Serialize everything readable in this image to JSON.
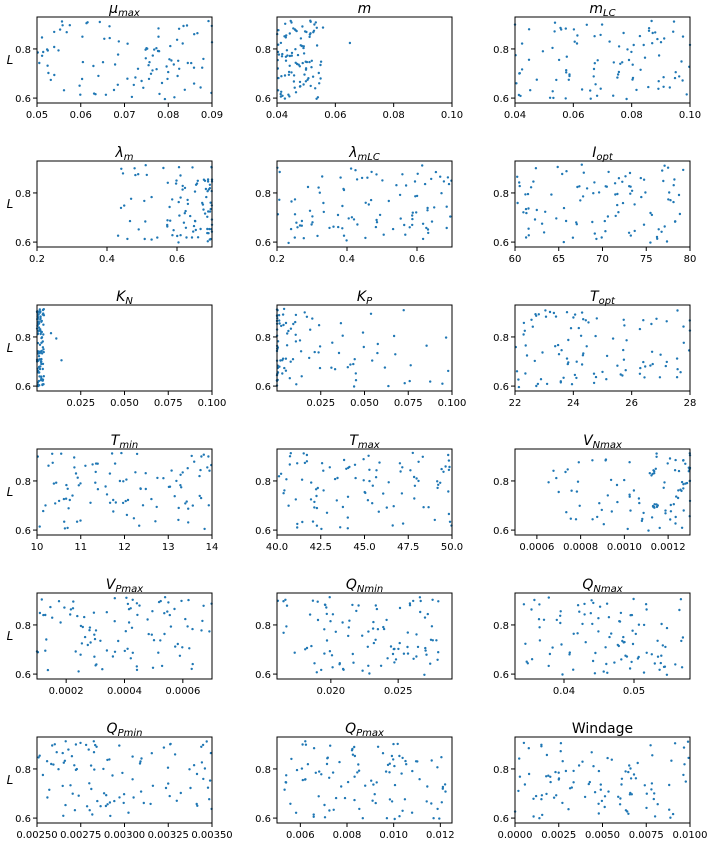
{
  "colors": {
    "points": "#1f77b4",
    "axes": "#000000",
    "background": "#ffffff"
  },
  "chart_data": [
    {
      "type": "scatter",
      "title": "μmax",
      "title_main": "μ",
      "title_sub": "max",
      "ylabel": "L",
      "xlim": [
        0.05,
        0.09
      ],
      "ylim": [
        0.58,
        0.93
      ],
      "xticks": [
        0.05,
        0.06,
        0.07,
        0.08,
        0.09
      ],
      "xtick_labels": [
        "0.05",
        "0.06",
        "0.07",
        "0.08",
        "0.09"
      ],
      "yticks": [
        0.6,
        0.8
      ],
      "ytick_labels": [
        "0.6",
        "0.8"
      ],
      "distribution": {
        "type": "uniform",
        "x_range": [
          0.05,
          0.09
        ],
        "n": 100
      }
    },
    {
      "type": "scatter",
      "title": "m",
      "title_main": "m",
      "title_sub": "",
      "ylabel": "",
      "xlim": [
        0.04,
        0.1
      ],
      "ylim": [
        0.58,
        0.93
      ],
      "xticks": [
        0.04,
        0.06,
        0.08,
        0.1
      ],
      "xtick_labels": [
        "0.04",
        "0.06",
        "0.08",
        "0.10"
      ],
      "yticks": [
        0.6,
        0.8
      ],
      "ytick_labels": [
        "0.6",
        "0.8"
      ],
      "distribution": {
        "type": "clustered",
        "x_range": [
          0.04,
          0.056
        ],
        "outliers_x": [
          0.065
        ],
        "n": 100
      }
    },
    {
      "type": "scatter",
      "title": "mLC",
      "title_main": "m",
      "title_sub": "LC",
      "ylabel": "",
      "xlim": [
        0.04,
        0.1
      ],
      "ylim": [
        0.58,
        0.93
      ],
      "xticks": [
        0.04,
        0.06,
        0.08,
        0.1
      ],
      "xtick_labels": [
        "0.04",
        "0.06",
        "0.08",
        "0.10"
      ],
      "yticks": [
        0.6,
        0.8
      ],
      "ytick_labels": [
        "0.6",
        "0.8"
      ],
      "distribution": {
        "type": "uniform",
        "x_range": [
          0.04,
          0.1
        ],
        "n": 100
      }
    },
    {
      "type": "scatter",
      "title": "λm",
      "title_main": "λ",
      "title_sub": "m",
      "ylabel": "L",
      "xlim": [
        0.2,
        0.7
      ],
      "ylim": [
        0.58,
        0.93
      ],
      "xticks": [
        0.2,
        0.4,
        0.6
      ],
      "xtick_labels": [
        "0.2",
        "0.4",
        "0.6"
      ],
      "yticks": [
        0.6,
        0.8
      ],
      "ytick_labels": [
        "0.6",
        "0.8"
      ],
      "distribution": {
        "type": "skewed_right",
        "x_range": [
          0.42,
          0.7
        ],
        "n": 100
      }
    },
    {
      "type": "scatter",
      "title": "λmLC",
      "title_main": "λ",
      "title_sub": "mLC",
      "ylabel": "",
      "xlim": [
        0.2,
        0.7
      ],
      "ylim": [
        0.58,
        0.93
      ],
      "xticks": [
        0.2,
        0.4,
        0.6
      ],
      "xtick_labels": [
        "0.2",
        "0.4",
        "0.6"
      ],
      "yticks": [
        0.6,
        0.8
      ],
      "ytick_labels": [
        "0.6",
        "0.8"
      ],
      "distribution": {
        "type": "uniform",
        "x_range": [
          0.2,
          0.7
        ],
        "n": 100
      }
    },
    {
      "type": "scatter",
      "title": "Iopt",
      "title_main": "I",
      "title_sub": "opt",
      "ylabel": "",
      "xlim": [
        60,
        80
      ],
      "ylim": [
        0.58,
        0.93
      ],
      "xticks": [
        60,
        65,
        70,
        75,
        80
      ],
      "xtick_labels": [
        "60",
        "65",
        "70",
        "75",
        "80"
      ],
      "yticks": [
        0.6,
        0.8
      ],
      "ytick_labels": [
        "0.6",
        "0.8"
      ],
      "distribution": {
        "type": "uniform",
        "x_range": [
          60,
          80
        ],
        "n": 100
      }
    },
    {
      "type": "scatter",
      "title": "KN",
      "title_main": "K",
      "title_sub": "N",
      "ylabel": "L",
      "xlim": [
        0.0,
        0.1
      ],
      "ylim": [
        0.58,
        0.93
      ],
      "xticks": [
        0.025,
        0.05,
        0.075,
        0.1
      ],
      "xtick_labels": [
        "0.025",
        "0.050",
        "0.075",
        "0.100"
      ],
      "yticks": [
        0.6,
        0.8
      ],
      "ytick_labels": [
        "0.6",
        "0.8"
      ],
      "distribution": {
        "type": "clustered",
        "x_range": [
          0.0,
          0.004
        ],
        "outliers_x": [
          0.008,
          0.011,
          0.014
        ],
        "n": 100
      }
    },
    {
      "type": "scatter",
      "title": "KP",
      "title_main": "K",
      "title_sub": "P",
      "ylabel": "",
      "xlim": [
        0.0,
        0.1
      ],
      "ylim": [
        0.58,
        0.93
      ],
      "xticks": [
        0.025,
        0.05,
        0.075,
        0.1
      ],
      "xtick_labels": [
        "0.025",
        "0.050",
        "0.075",
        "0.100"
      ],
      "yticks": [
        0.6,
        0.8
      ],
      "ytick_labels": [
        "0.6",
        "0.8"
      ],
      "distribution": {
        "type": "decaying",
        "x_range": [
          0.0,
          0.1
        ],
        "n": 100
      }
    },
    {
      "type": "scatter",
      "title": "Topt",
      "title_main": "T",
      "title_sub": "opt",
      "ylabel": "",
      "xlim": [
        22,
        28
      ],
      "ylim": [
        0.58,
        0.93
      ],
      "xticks": [
        22,
        24,
        26,
        28
      ],
      "xtick_labels": [
        "22",
        "24",
        "26",
        "28"
      ],
      "yticks": [
        0.6,
        0.8
      ],
      "ytick_labels": [
        "0.6",
        "0.8"
      ],
      "distribution": {
        "type": "uniform",
        "x_range": [
          22,
          28
        ],
        "n": 100
      }
    },
    {
      "type": "scatter",
      "title": "Tmin",
      "title_main": "T",
      "title_sub": "min",
      "ylabel": "L",
      "xlim": [
        10,
        14
      ],
      "ylim": [
        0.58,
        0.93
      ],
      "xticks": [
        10,
        11,
        12,
        13,
        14
      ],
      "xtick_labels": [
        "10",
        "11",
        "12",
        "13",
        "14"
      ],
      "yticks": [
        0.6,
        0.8
      ],
      "ytick_labels": [
        "0.6",
        "0.8"
      ],
      "distribution": {
        "type": "uniform",
        "x_range": [
          10,
          14
        ],
        "n": 100
      }
    },
    {
      "type": "scatter",
      "title": "Tmax",
      "title_main": "T",
      "title_sub": "max",
      "ylabel": "",
      "xlim": [
        40,
        50
      ],
      "ylim": [
        0.58,
        0.93
      ],
      "xticks": [
        40,
        42.5,
        45,
        47.5,
        50
      ],
      "xtick_labels": [
        "40.0",
        "42.5",
        "45.0",
        "47.5",
        "50.0"
      ],
      "yticks": [
        0.6,
        0.8
      ],
      "ytick_labels": [
        "0.6",
        "0.8"
      ],
      "distribution": {
        "type": "uniform",
        "x_range": [
          40,
          50
        ],
        "n": 100
      }
    },
    {
      "type": "scatter",
      "title": "VNmax",
      "title_main": "V",
      "title_sub": "Nmax",
      "ylabel": "",
      "xlim": [
        0.0005,
        0.0013
      ],
      "ylim": [
        0.58,
        0.93
      ],
      "xticks": [
        0.0006,
        0.0008,
        0.001,
        0.0012
      ],
      "xtick_labels": [
        "0.0006",
        "0.0008",
        "0.0010",
        "0.0012"
      ],
      "yticks": [
        0.6,
        0.8
      ],
      "ytick_labels": [
        "0.6",
        "0.8"
      ],
      "distribution": {
        "type": "skewed_right",
        "x_range": [
          0.00065,
          0.0013
        ],
        "n": 100
      }
    },
    {
      "type": "scatter",
      "title": "VPmax",
      "title_main": "V",
      "title_sub": "Pmax",
      "ylabel": "L",
      "xlim": [
        0.0001,
        0.0007
      ],
      "ylim": [
        0.58,
        0.93
      ],
      "xticks": [
        0.0002,
        0.0004,
        0.0006
      ],
      "xtick_labels": [
        "0.0002",
        "0.0004",
        "0.0006"
      ],
      "yticks": [
        0.6,
        0.8
      ],
      "ytick_labels": [
        "0.6",
        "0.8"
      ],
      "distribution": {
        "type": "uniform",
        "x_range": [
          0.0001,
          0.0007
        ],
        "n": 100
      }
    },
    {
      "type": "scatter",
      "title": "QNmin",
      "title_main": "Q",
      "title_sub": "Nmin",
      "ylabel": "",
      "xlim": [
        0.016,
        0.029
      ],
      "ylim": [
        0.58,
        0.93
      ],
      "xticks": [
        0.02,
        0.025
      ],
      "xtick_labels": [
        "0.020",
        "0.025"
      ],
      "yticks": [
        0.6,
        0.8
      ],
      "ytick_labels": [
        "0.6",
        "0.8"
      ],
      "distribution": {
        "type": "uniform",
        "x_range": [
          0.016,
          0.028
        ],
        "n": 100
      }
    },
    {
      "type": "scatter",
      "title": "QNmax",
      "title_main": "Q",
      "title_sub": "Nmax",
      "ylabel": "",
      "xlim": [
        0.033,
        0.058
      ],
      "ylim": [
        0.58,
        0.93
      ],
      "xticks": [
        0.04,
        0.05
      ],
      "xtick_labels": [
        "0.04",
        "0.05"
      ],
      "yticks": [
        0.6,
        0.8
      ],
      "ytick_labels": [
        "0.6",
        "0.8"
      ],
      "distribution": {
        "type": "uniform",
        "x_range": [
          0.034,
          0.057
        ],
        "n": 100
      }
    },
    {
      "type": "scatter",
      "title": "QPmin",
      "title_main": "Q",
      "title_sub": "Pmin",
      "ylabel": "L",
      "xlim": [
        0.0025,
        0.0035
      ],
      "ylim": [
        0.58,
        0.93
      ],
      "xticks": [
        0.0025,
        0.00275,
        0.003,
        0.00325,
        0.0035
      ],
      "xtick_labels": [
        "0.00250",
        "0.00275",
        "0.00300",
        "0.00325",
        "0.00350"
      ],
      "yticks": [
        0.6,
        0.8
      ],
      "ytick_labels": [
        "0.6",
        "0.8"
      ],
      "distribution": {
        "type": "uniform",
        "x_range": [
          0.0025,
          0.0035
        ],
        "n": 100
      }
    },
    {
      "type": "scatter",
      "title": "QPmax",
      "title_main": "Q",
      "title_sub": "Pmax",
      "ylabel": "",
      "xlim": [
        0.005,
        0.0125
      ],
      "ylim": [
        0.58,
        0.93
      ],
      "xticks": [
        0.006,
        0.008,
        0.01,
        0.012
      ],
      "xtick_labels": [
        "0.006",
        "0.008",
        "0.010",
        "0.012"
      ],
      "yticks": [
        0.6,
        0.8
      ],
      "ytick_labels": [
        "0.6",
        "0.8"
      ],
      "distribution": {
        "type": "uniform",
        "x_range": [
          0.0052,
          0.0123
        ],
        "n": 100
      }
    },
    {
      "type": "scatter",
      "title": "Windage",
      "title_main": "Windage",
      "title_sub": "",
      "title_upright": true,
      "ylabel": "",
      "xlim": [
        0.0,
        0.01
      ],
      "ylim": [
        0.58,
        0.93
      ],
      "xticks": [
        0.0,
        0.0025,
        0.005,
        0.0075,
        0.01
      ],
      "xtick_labels": [
        "0.0000",
        "0.0025",
        "0.0050",
        "0.0075",
        "0.0100"
      ],
      "yticks": [
        0.6,
        0.8
      ],
      "ytick_labels": [
        "0.6",
        "0.8"
      ],
      "distribution": {
        "type": "uniform",
        "x_range": [
          0.0,
          0.01
        ],
        "n": 100
      }
    }
  ]
}
